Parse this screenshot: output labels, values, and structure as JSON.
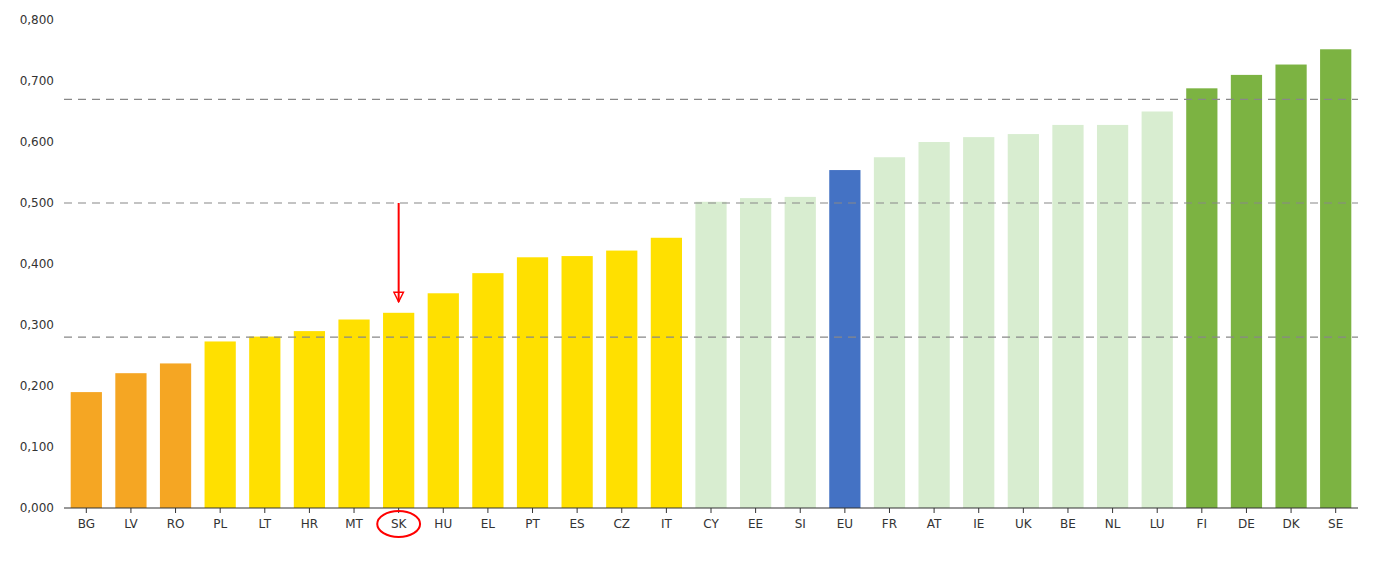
{
  "chart_data": {
    "type": "bar",
    "categories": [
      "BG",
      "LV",
      "RO",
      "PL",
      "LT",
      "HR",
      "MT",
      "SK",
      "HU",
      "EL",
      "PT",
      "ES",
      "CZ",
      "IT",
      "CY",
      "EE",
      "SI",
      "EU",
      "FR",
      "AT",
      "IE",
      "UK",
      "BE",
      "NL",
      "LU",
      "FI",
      "DE",
      "DK",
      "SE"
    ],
    "values": [
      0.19,
      0.221,
      0.237,
      0.273,
      0.281,
      0.29,
      0.309,
      0.32,
      0.352,
      0.385,
      0.411,
      0.413,
      0.422,
      0.443,
      0.502,
      0.508,
      0.51,
      0.554,
      0.575,
      0.6,
      0.608,
      0.613,
      0.628,
      0.628,
      0.65,
      0.688,
      0.71,
      0.727,
      0.752
    ],
    "colors": [
      "#F5A623",
      "#F5A623",
      "#F5A623",
      "#FFE000",
      "#FFE000",
      "#FFE000",
      "#FFE000",
      "#FFE000",
      "#FFE000",
      "#FFE000",
      "#FFE000",
      "#FFE000",
      "#FFE000",
      "#FFE000",
      "#D8EDD0",
      "#D8EDD0",
      "#D8EDD0",
      "#4472C4",
      "#D8EDD0",
      "#D8EDD0",
      "#D8EDD0",
      "#D8EDD0",
      "#D8EDD0",
      "#D8EDD0",
      "#D8EDD0",
      "#7CB342",
      "#7CB342",
      "#7CB342",
      "#7CB342"
    ],
    "ylim": [
      0.0,
      0.8
    ],
    "yticks": [
      {
        "value": 0.0,
        "label": "0,000"
      },
      {
        "value": 0.1,
        "label": "0,100"
      },
      {
        "value": 0.2,
        "label": "0,200"
      },
      {
        "value": 0.3,
        "label": "0,300"
      },
      {
        "value": 0.4,
        "label": "0,400"
      },
      {
        "value": 0.5,
        "label": "0,500"
      },
      {
        "value": 0.6,
        "label": "0,600"
      },
      {
        "value": 0.7,
        "label": "0,700"
      },
      {
        "value": 0.8,
        "label": "0,800"
      }
    ],
    "grid": false,
    "reference_lines": {
      "values": [
        0.28,
        0.5,
        0.67
      ],
      "color": "#888888"
    },
    "highlight": {
      "category": "SK",
      "color": "red"
    },
    "arrow": {
      "from": 0.5,
      "to": 0.338,
      "color": "red"
    }
  }
}
